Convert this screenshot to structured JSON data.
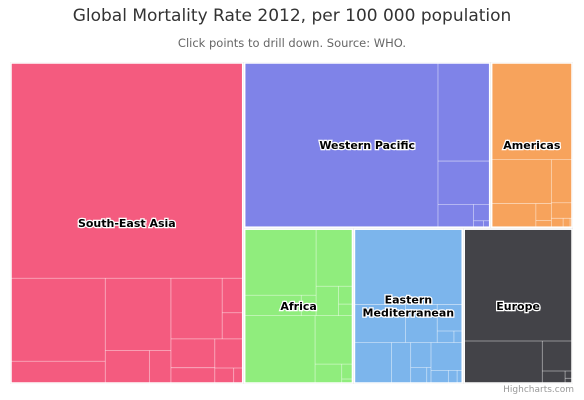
{
  "chart_data": {
    "type": "treemap",
    "title": "Global Mortality Rate 2012, per 100 000 population",
    "subtitle": "Click points to drill down. Source: WHO.",
    "credits": "Highcharts.com",
    "series": [
      {
        "name": "South-East Asia",
        "label_lines": [
          "South-East Asia"
        ],
        "color": "#f45b7f",
        "value": 11.0
      },
      {
        "name": "Western Pacific",
        "label_lines": [
          "Western Pacific"
        ],
        "color": "#7f83e8",
        "value": 6.0
      },
      {
        "name": "Americas",
        "label_lines": [
          "Americas"
        ],
        "color": "#f7a35c",
        "value": 2.0
      },
      {
        "name": "Africa",
        "label_lines": [
          "Africa"
        ],
        "color": "#90ed7d",
        "value": 2.5
      },
      {
        "name": "Eastern Mediterranean",
        "label_lines": [
          "Eastern",
          "Mediterranean"
        ],
        "color": "#7cb5ec",
        "value": 2.5
      },
      {
        "name": "Europe",
        "label_lines": [
          "Europe"
        ],
        "color": "#434348",
        "value": 2.5
      }
    ]
  }
}
